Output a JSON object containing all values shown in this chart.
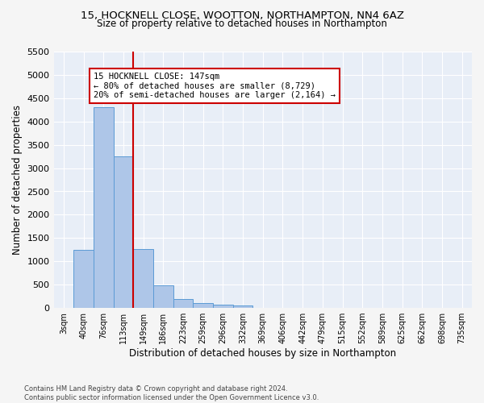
{
  "title1": "15, HOCKNELL CLOSE, WOOTTON, NORTHAMPTON, NN4 6AZ",
  "title2": "Size of property relative to detached houses in Northampton",
  "xlabel": "Distribution of detached houses by size in Northampton",
  "ylabel": "Number of detached properties",
  "footnote": "Contains HM Land Registry data © Crown copyright and database right 2024.\nContains public sector information licensed under the Open Government Licence v3.0.",
  "bar_labels": [
    "3sqm",
    "40sqm",
    "76sqm",
    "113sqm",
    "149sqm",
    "186sqm",
    "223sqm",
    "259sqm",
    "296sqm",
    "332sqm",
    "369sqm",
    "406sqm",
    "442sqm",
    "479sqm",
    "515sqm",
    "552sqm",
    "589sqm",
    "625sqm",
    "662sqm",
    "698sqm",
    "735sqm"
  ],
  "bar_values": [
    0,
    1250,
    4300,
    3250,
    1270,
    480,
    200,
    110,
    75,
    50,
    0,
    0,
    0,
    0,
    0,
    0,
    0,
    0,
    0,
    0,
    0
  ],
  "bar_color": "#aec6e8",
  "bar_edge_color": "#5b9bd5",
  "vline_color": "#cc0000",
  "annotation_text": "15 HOCKNELL CLOSE: 147sqm\n← 80% of detached houses are smaller (8,729)\n20% of semi-detached houses are larger (2,164) →",
  "annotation_box_color": "#ffffff",
  "annotation_box_edge": "#cc0000",
  "ylim": [
    0,
    5500
  ],
  "yticks": [
    0,
    500,
    1000,
    1500,
    2000,
    2500,
    3000,
    3500,
    4000,
    4500,
    5000,
    5500
  ],
  "bg_color": "#e8eef7",
  "grid_color": "#ffffff",
  "fig_bg_color": "#f5f5f5",
  "title1_fontsize": 9.5,
  "title2_fontsize": 8.5,
  "xlabel_fontsize": 8.5,
  "ylabel_fontsize": 8.5
}
